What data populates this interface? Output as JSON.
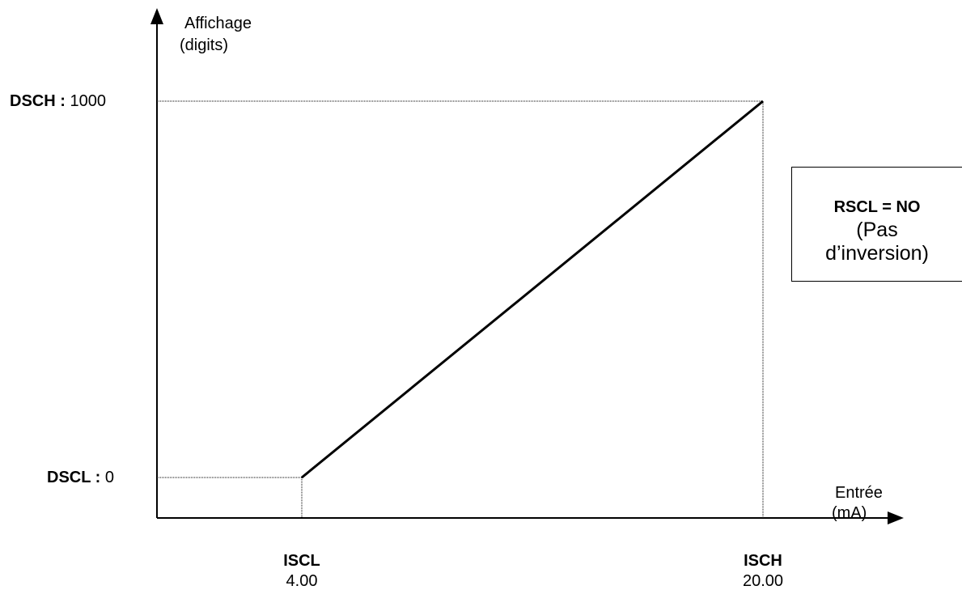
{
  "axes": {
    "y_label_line1": "Affichage",
    "y_label_line2": "(digits)",
    "x_label_line1": "Entrée",
    "x_label_line2": "(mA)"
  },
  "y_marks": {
    "high": {
      "name": "DSCH",
      "sep": " :",
      "value": "1000"
    },
    "low": {
      "name": "DSCL",
      "sep": " :",
      "value": "0"
    }
  },
  "x_marks": {
    "low": {
      "name": "ISCL",
      "value": "4.00"
    },
    "high": {
      "name": "ISCH",
      "value": "20.00"
    }
  },
  "note": {
    "title": "RSCL = NO",
    "text_line1": "(Pas",
    "text_line2": "d’inversion)"
  },
  "chart_data": {
    "type": "line",
    "x": [
      4.0,
      20.0
    ],
    "y": [
      0,
      1000
    ],
    "xlabel": "Entrée (mA)",
    "ylabel": "Affichage (digits)"
  }
}
